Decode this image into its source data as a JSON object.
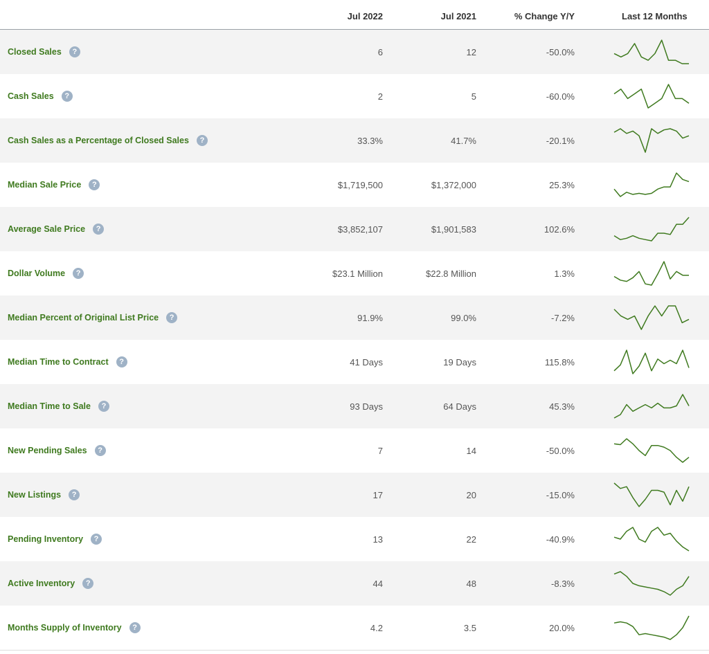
{
  "header": {
    "current_period": "Jul 2022",
    "prior_period": "Jul 2021",
    "change_label": "% Change Y/Y",
    "trend_label": "Last 12 Months"
  },
  "colors": {
    "label": "#3f7a1f",
    "sparkline": "#3f7a1f",
    "help_icon": "#9fb2c6",
    "row_shade": "#f3f3f3"
  },
  "help_icon_glyph": "?",
  "rows": [
    {
      "label": "Closed Sales",
      "current": "6",
      "prior": "12",
      "change": "-50.0%",
      "trend": [
        6,
        5,
        6,
        9,
        5,
        4,
        6,
        10,
        4,
        4,
        3,
        3
      ]
    },
    {
      "label": "Cash Sales",
      "current": "2",
      "prior": "5",
      "change": "-60.0%",
      "trend": [
        4,
        5,
        3,
        4,
        5,
        1,
        2,
        3,
        6,
        3,
        3,
        2
      ]
    },
    {
      "label": "Cash Sales as a Percentage of Closed Sales",
      "current": "33.3%",
      "prior": "41.7%",
      "change": "-20.1%",
      "trend": [
        55,
        58,
        54,
        56,
        52,
        38,
        58,
        54,
        57,
        58,
        56,
        50,
        52
      ]
    },
    {
      "label": "Median Sale Price",
      "current": "$1,719,500",
      "prior": "$1,372,000",
      "change": "25.3%",
      "trend": [
        1.45,
        1.38,
        1.42,
        1.4,
        1.41,
        1.4,
        1.41,
        1.45,
        1.47,
        1.47,
        1.6,
        1.54,
        1.52
      ]
    },
    {
      "label": "Average Sale Price",
      "current": "$3,852,107",
      "prior": "$1,901,583",
      "change": "102.6%",
      "trend": [
        2.4,
        2.1,
        2.2,
        2.4,
        2.2,
        2.1,
        2.0,
        2.6,
        2.6,
        2.5,
        3.3,
        3.3,
        3.85
      ]
    },
    {
      "label": "Dollar Volume",
      "current": "$23.1 Million",
      "prior": "$22.8 Million",
      "change": "1.3%",
      "trend": [
        22,
        19,
        18,
        21,
        26,
        16,
        15,
        24,
        34,
        20,
        26,
        23,
        23
      ]
    },
    {
      "label": "Median Percent of Original List Price",
      "current": "91.9%",
      "prior": "99.0%",
      "change": "-7.2%",
      "trend": [
        95,
        94,
        93.5,
        94,
        92,
        94,
        95.5,
        94,
        95.5,
        95.5,
        93,
        93.5
      ]
    },
    {
      "label": "Median Time to Contract",
      "current": "41 Days",
      "prior": "19 Days",
      "change": "115.8%",
      "trend": [
        20,
        30,
        55,
        15,
        28,
        50,
        20,
        40,
        32,
        38,
        32,
        55,
        25
      ]
    },
    {
      "label": "Median Time to Sale",
      "current": "93 Days",
      "prior": "64 Days",
      "change": "45.3%",
      "trend": [
        70,
        75,
        90,
        80,
        85,
        90,
        85,
        92,
        85,
        85,
        88,
        105,
        88
      ]
    },
    {
      "label": "New Pending Sales",
      "current": "7",
      "prior": "14",
      "change": "-50.0%",
      "trend": [
        14,
        13.5,
        17,
        14,
        10,
        7,
        13,
        13,
        12,
        10,
        6,
        3,
        6
      ]
    },
    {
      "label": "New Listings",
      "current": "17",
      "prior": "20",
      "change": "-15.0%",
      "trend": [
        25,
        22,
        23,
        17,
        12,
        16,
        21,
        21,
        20,
        13,
        21,
        15,
        23
      ]
    },
    {
      "label": "Pending Inventory",
      "current": "13",
      "prior": "22",
      "change": "-40.9%",
      "trend": [
        22,
        21,
        25,
        27,
        21,
        19.5,
        25,
        27,
        23,
        24,
        20,
        17,
        15
      ]
    },
    {
      "label": "Active Inventory",
      "current": "44",
      "prior": "48",
      "change": "-8.3%",
      "trend": [
        54,
        55,
        53,
        50,
        49,
        48.5,
        48,
        47.5,
        46.5,
        45,
        47.5,
        49,
        53
      ]
    },
    {
      "label": "Months Supply of Inventory",
      "current": "4.2",
      "prior": "3.5",
      "change": "20.0%",
      "trend": [
        4.9,
        5.0,
        4.9,
        4.6,
        3.9,
        4.0,
        3.9,
        3.8,
        3.7,
        3.5,
        3.9,
        4.5,
        5.5
      ]
    }
  ]
}
